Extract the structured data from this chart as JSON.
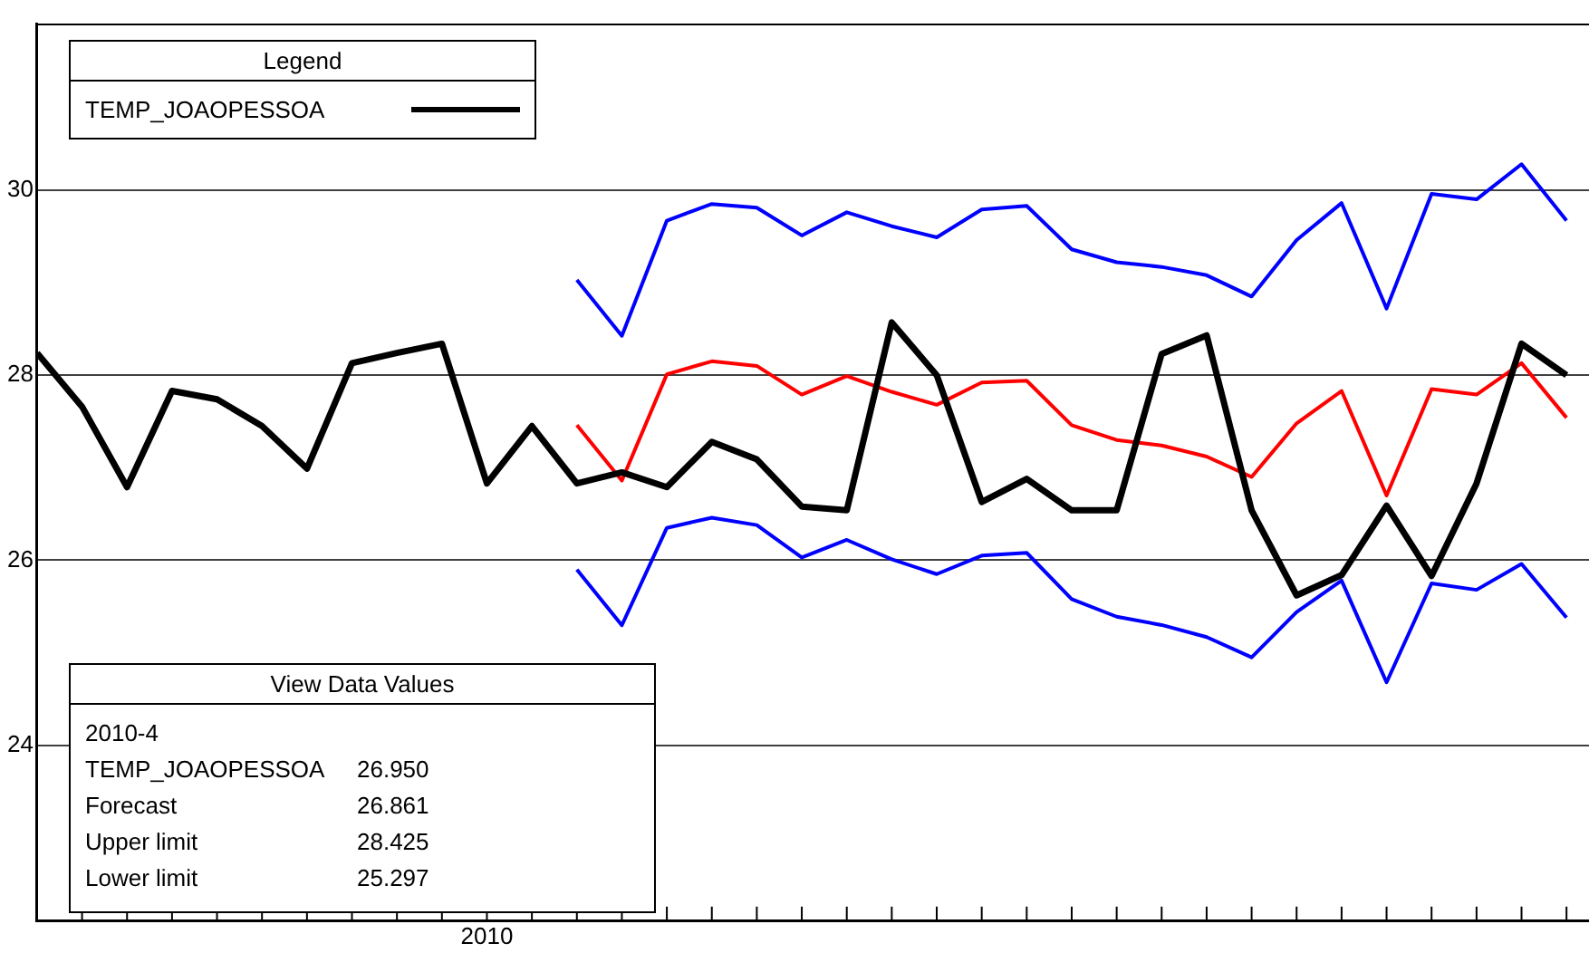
{
  "chart_data": {
    "type": "line",
    "legend_title": "Legend",
    "legend": "top left",
    "grid": "y",
    "marker": "none",
    "line_style": "solid",
    "categories": [
      null,
      null,
      null,
      null,
      null,
      null,
      null,
      null,
      null,
      null,
      "2010",
      null,
      null,
      null,
      null,
      null,
      null,
      null,
      null,
      null,
      null,
      null,
      null,
      null,
      null,
      null,
      null,
      null,
      null,
      null,
      null,
      null,
      null,
      null,
      null
    ],
    "series": [
      {
        "name": "TEMP_JOAOPESSOA",
        "color": "#000000",
        "values": [
          28.24,
          27.66,
          26.79,
          27.83,
          27.74,
          27.45,
          26.99,
          28.13,
          28.24,
          28.34,
          26.83,
          27.45,
          26.83,
          26.95,
          26.79,
          27.28,
          27.09,
          26.58,
          26.54,
          28.57,
          28.0,
          26.63,
          26.88,
          26.54,
          26.54,
          28.23,
          28.43,
          26.54,
          25.62,
          25.84,
          26.59,
          25.83,
          26.83,
          28.34,
          28.0
        ]
      },
      {
        "color": "#ff0000",
        "values": [
          null,
          null,
          null,
          null,
          null,
          null,
          null,
          null,
          null,
          null,
          null,
          null,
          27.46,
          26.861,
          28.01,
          28.15,
          28.1,
          27.79,
          27.99,
          27.82,
          27.68,
          27.92,
          27.94,
          27.46,
          27.3,
          27.24,
          27.12,
          26.9,
          27.48,
          27.83,
          26.7,
          27.85,
          27.79,
          28.13,
          27.54
        ]
      },
      {
        "color": "#0000ff",
        "values": [
          null,
          null,
          null,
          null,
          null,
          null,
          null,
          null,
          null,
          null,
          null,
          null,
          29.03,
          28.425,
          29.67,
          29.85,
          29.81,
          29.51,
          29.76,
          29.61,
          29.49,
          29.79,
          29.83,
          29.36,
          29.22,
          29.17,
          29.08,
          28.85,
          29.46,
          29.86,
          28.72,
          29.96,
          29.9,
          30.28,
          29.67
        ]
      },
      {
        "color": "#0000ff",
        "values": [
          null,
          null,
          null,
          null,
          null,
          null,
          null,
          null,
          null,
          null,
          null,
          null,
          25.9,
          25.297,
          26.35,
          26.46,
          26.38,
          26.03,
          26.22,
          26.01,
          25.85,
          26.05,
          26.08,
          25.58,
          25.39,
          25.3,
          25.17,
          24.95,
          25.44,
          25.78,
          24.68,
          25.75,
          25.68,
          25.96,
          25.38
        ]
      }
    ],
    "ylim": [
      22.1,
      31.8
    ],
    "yticks": [
      24,
      26,
      28,
      30
    ],
    "annotations": [
      "View Data Values",
      "2010-4",
      "TEMP_JOAOPESSOA",
      "26.950",
      "Forecast",
      "26.861",
      "Upper limit",
      "28.425",
      "Lower limit",
      "25.297"
    ]
  }
}
